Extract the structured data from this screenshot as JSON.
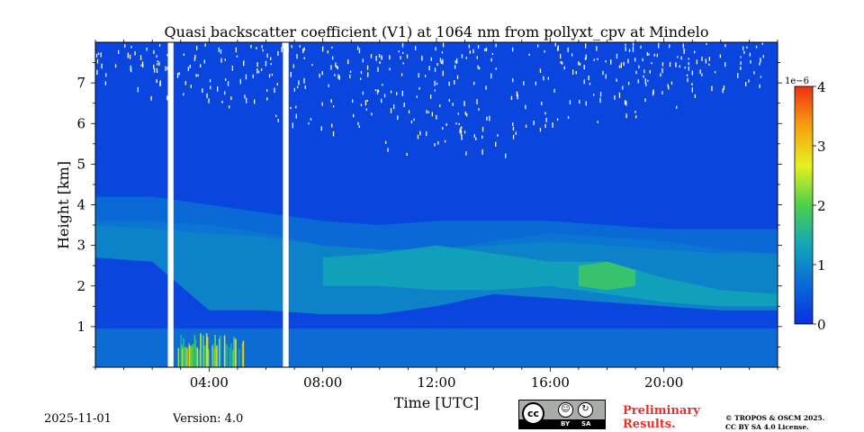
{
  "chart_data": {
    "type": "heatmap",
    "title": "Quasi backscatter coefficient (V1) at 1064 nm from pollyxt_cpv at Mindelo",
    "xlabel": "Time [UTC]",
    "ylabel": "Height [km]",
    "x_range_hours": [
      0,
      24
    ],
    "y_range_km": [
      0,
      8
    ],
    "x_ticks": [
      {
        "value": 4,
        "label": "04:00"
      },
      {
        "value": 8,
        "label": "08:00"
      },
      {
        "value": 12,
        "label": "12:00"
      },
      {
        "value": 16,
        "label": "16:00"
      },
      {
        "value": 20,
        "label": "20:00"
      }
    ],
    "y_ticks": [
      {
        "value": 1,
        "label": "1"
      },
      {
        "value": 2,
        "label": "2"
      },
      {
        "value": 3,
        "label": "3"
      },
      {
        "value": 4,
        "label": "4"
      },
      {
        "value": 5,
        "label": "5"
      },
      {
        "value": 6,
        "label": "6"
      },
      {
        "value": 7,
        "label": "7"
      }
    ],
    "colorbar": {
      "exponent": "1e−6",
      "range": [
        0,
        4
      ],
      "ticks": [
        {
          "value": 0,
          "label": "0"
        },
        {
          "value": 1,
          "label": "1"
        },
        {
          "value": 2,
          "label": "2"
        },
        {
          "value": 3,
          "label": "3"
        },
        {
          "value": 4,
          "label": "4"
        }
      ],
      "colors": [
        "#0a2fe0",
        "#0a6ad8",
        "#12a6b8",
        "#4cd04a",
        "#e8f020",
        "#f5a010",
        "#ee3010"
      ]
    },
    "background_value": 0.25,
    "data_gaps_hours": [
      [
        2.55,
        2.75
      ],
      [
        6.6,
        6.8
      ]
    ],
    "layers": [
      {
        "name": "marine boundary layer",
        "x": [
          0,
          24
        ],
        "y_bottom": [
          0,
          0
        ],
        "y_top": [
          0.95,
          0.95
        ],
        "value": 0.8
      },
      {
        "name": "dust layer lower",
        "x": [
          0,
          2,
          4,
          6,
          8,
          10,
          12,
          14,
          16,
          18,
          20,
          22,
          24
        ],
        "y_bottom": [
          2.7,
          2.6,
          1.4,
          1.4,
          1.3,
          1.3,
          1.5,
          1.8,
          1.7,
          1.6,
          1.5,
          1.4,
          1.4
        ],
        "y_top": [
          3.6,
          3.6,
          3.5,
          3.3,
          3.0,
          2.9,
          2.9,
          3.1,
          3.3,
          3.2,
          3.1,
          2.9,
          2.8
        ],
        "value": 1.1
      },
      {
        "name": "upper aerosol layer",
        "x": [
          0,
          2,
          4,
          6,
          8,
          10,
          12,
          14,
          16,
          18,
          20,
          22,
          24
        ],
        "y_bottom": [
          3.5,
          3.4,
          3.3,
          3.2,
          3.0,
          2.9,
          2.9,
          3.0,
          3.1,
          3.0,
          2.9,
          2.8,
          2.8
        ],
        "y_top": [
          4.2,
          4.2,
          4.0,
          3.8,
          3.6,
          3.5,
          3.6,
          3.6,
          3.6,
          3.5,
          3.4,
          3.4,
          3.4
        ],
        "value": 0.75
      },
      {
        "name": "enhanced band",
        "x": [
          8,
          10,
          12,
          14,
          16,
          18,
          20,
          22,
          24
        ],
        "y_bottom": [
          2.0,
          2.0,
          1.9,
          1.9,
          2.0,
          1.8,
          1.6,
          1.5,
          1.5
        ],
        "y_top": [
          2.7,
          2.8,
          3.0,
          2.8,
          2.6,
          2.6,
          2.2,
          1.9,
          1.8
        ],
        "value": 1.35
      },
      {
        "name": "peak",
        "x": [
          17,
          18,
          19
        ],
        "y_bottom": [
          2.0,
          1.9,
          2.0
        ],
        "y_top": [
          2.5,
          2.6,
          2.4
        ],
        "value": 1.9
      }
    ],
    "near_ground_bursts": {
      "x_range_hours": [
        2.9,
        5.2
      ],
      "y_range_km": [
        0,
        0.85
      ],
      "value": 2.1
    }
  },
  "footer": {
    "date": "2025-11-01",
    "version": "Version: 4.0",
    "prelim_line1": "Preliminary",
    "prelim_line2": "Results.",
    "copyright_line1": "© TROPOS & OSCM 2025.",
    "copyright_line2": "CC BY SA 4.0 License.",
    "cc_label": "cc",
    "by_label": "BY",
    "sa_label": "SA"
  }
}
